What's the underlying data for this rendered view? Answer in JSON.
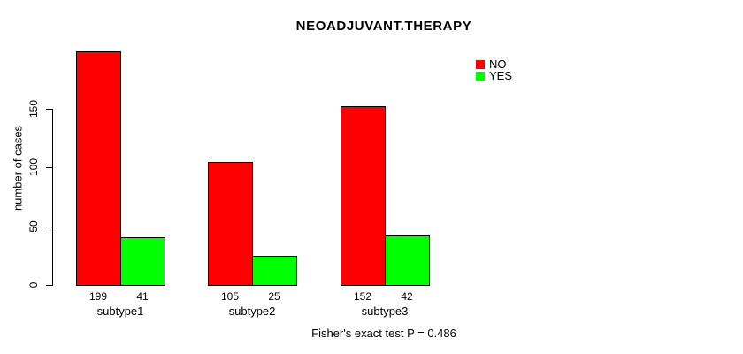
{
  "title": "NEOADJUVANT.THERAPY",
  "chart_data": {
    "type": "bar",
    "title": "NEOADJUVANT.THERAPY",
    "xlabel": "",
    "ylabel": "number of cases",
    "categories": [
      "subtype1",
      "subtype2",
      "subtype3"
    ],
    "series": [
      {
        "name": "NO",
        "color": "#ff0000",
        "values": [
          199,
          105,
          152
        ]
      },
      {
        "name": "YES",
        "color": "#00ff00",
        "values": [
          41,
          25,
          42
        ]
      }
    ],
    "bar_value_labels": [
      [
        199,
        41
      ],
      [
        105,
        25
      ],
      [
        152,
        42
      ]
    ],
    "yticks": [
      0,
      50,
      100,
      150
    ],
    "ylim": [
      0,
      200
    ],
    "grid": false,
    "legend_position": "top-right",
    "bar_border_color": "#000000",
    "annotation": "Fisher's exact test P = 0.486"
  }
}
